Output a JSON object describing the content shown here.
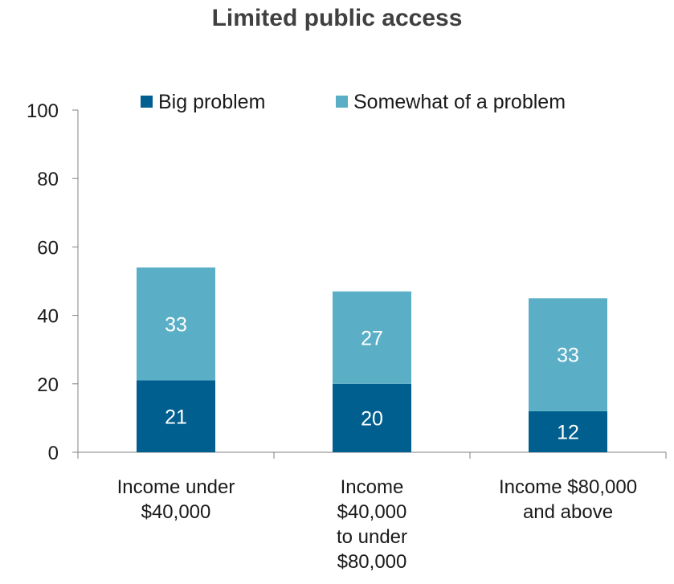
{
  "chart_data": {
    "type": "bar",
    "stacked": true,
    "title": "Limited public access",
    "categories": [
      [
        "Income under",
        "$40,000"
      ],
      [
        "Income",
        "$40,000",
        "to under",
        "$80,000"
      ],
      [
        "Income $80,000",
        "and above"
      ]
    ],
    "series": [
      {
        "name": "Big problem",
        "values": [
          21,
          20,
          12
        ],
        "color": "#005f8f"
      },
      {
        "name": "Somewhat of a problem",
        "values": [
          33,
          27,
          33
        ],
        "color": "#5aafc7"
      }
    ],
    "ylim": [
      0,
      100
    ],
    "yticks": [
      0,
      20,
      40,
      60,
      80,
      100
    ],
    "grid": false,
    "legend_position": "top"
  }
}
